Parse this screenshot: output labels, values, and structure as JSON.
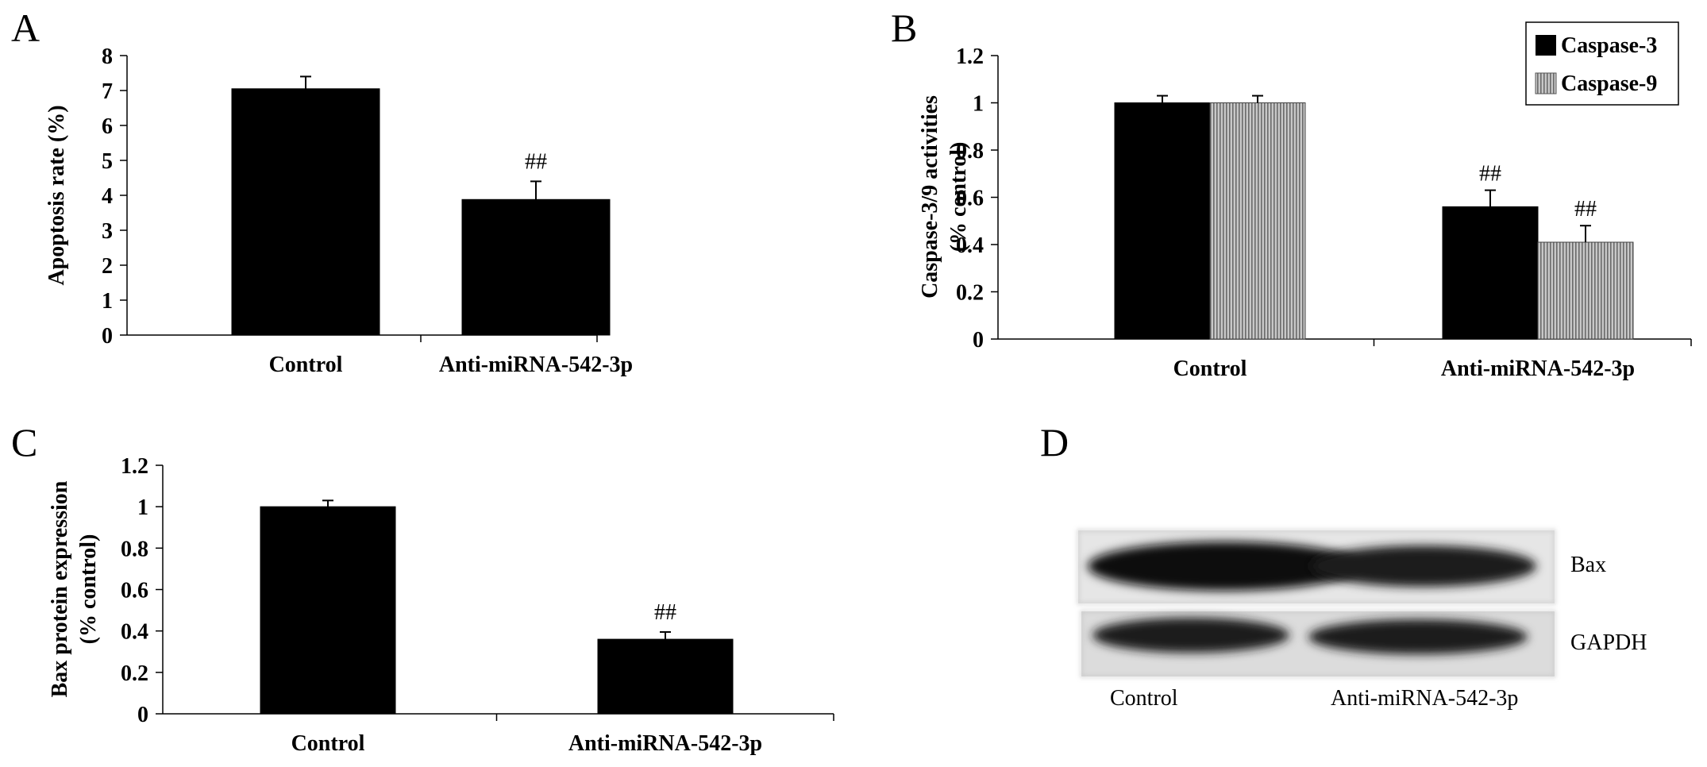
{
  "panels": {
    "a": "A",
    "b": "B",
    "c": "C",
    "d": "D"
  },
  "colors": {
    "caspase3": "#000000",
    "caspase9": "#b0b0b0"
  },
  "chart_data": [
    {
      "panel": "A",
      "type": "bar",
      "categories": [
        "Control",
        "Anti-miRNA-542-3p"
      ],
      "series": [
        {
          "values": [
            7.05,
            3.88
          ],
          "errors": [
            0.35,
            0.52
          ]
        }
      ],
      "ylabel": "Apoptosis rate (%)",
      "ylim": [
        0,
        8
      ],
      "yticks": [
        "0",
        "1",
        "2",
        "3",
        "4",
        "5",
        "6",
        "7",
        "8"
      ],
      "annotations": [
        "",
        "##"
      ]
    },
    {
      "panel": "B",
      "type": "bar",
      "categories": [
        "Control",
        "Anti-miRNA-542-3p"
      ],
      "series": [
        {
          "name": "Caspase-3",
          "values": [
            1.0,
            0.56
          ],
          "errors": [
            0.03,
            0.07
          ]
        },
        {
          "name": "Caspase-9",
          "values": [
            1.0,
            0.41
          ],
          "errors": [
            0.03,
            0.07
          ]
        }
      ],
      "ylabel_line1": "Caspase-3/9 activities",
      "ylabel_line2": "(% control)",
      "ylim": [
        0,
        1.2
      ],
      "yticks": [
        "0",
        "0.2",
        "0.4",
        "0.6",
        "0.8",
        "1",
        "1.2"
      ],
      "annotations": [
        "##",
        "##"
      ],
      "legend": "top-right"
    },
    {
      "panel": "C",
      "type": "bar",
      "categories": [
        "Control",
        "Anti-miRNA-542-3p"
      ],
      "series": [
        {
          "values": [
            1.0,
            0.36
          ],
          "errors": [
            0.03,
            0.035
          ]
        }
      ],
      "ylabel_line1": "Bax protein expression",
      "ylabel_line2": "(% control)",
      "ylim": [
        0,
        1.2
      ],
      "yticks": [
        "0",
        "0.2",
        "0.4",
        "0.6",
        "0.8",
        "1",
        "1.2"
      ],
      "annotations": [
        "",
        "##"
      ]
    }
  ],
  "blot": {
    "rows": [
      "Bax",
      "GAPDH"
    ],
    "lanes": [
      "Control",
      "Anti-miRNA-542-3p"
    ]
  }
}
